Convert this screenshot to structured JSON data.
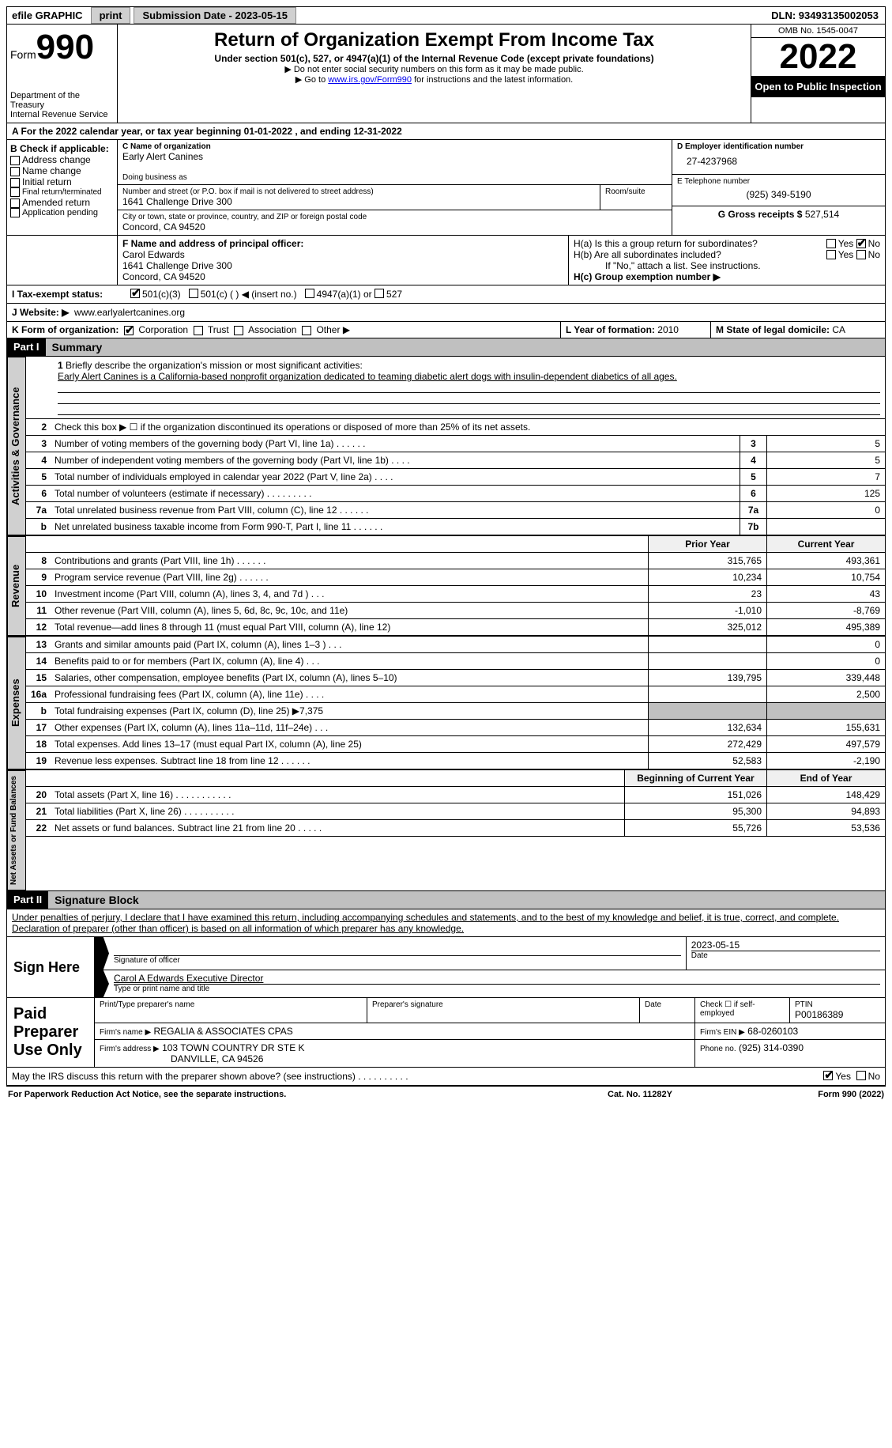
{
  "topbar": {
    "efile_label": "efile GRAPHIC",
    "print_btn": "print",
    "sub_date_label": "Submission Date - 2023-05-15",
    "dln_label": "DLN: 93493135002053"
  },
  "header": {
    "form_word": "Form",
    "form_num": "990",
    "dept": "Department of the Treasury",
    "irs": "Internal Revenue Service",
    "title": "Return of Organization Exempt From Income Tax",
    "sub1": "Under section 501(c), 527, or 4947(a)(1) of the Internal Revenue Code (except private foundations)",
    "sub2": "▶ Do not enter social security numbers on this form as it may be made public.",
    "sub3_pre": "▶ Go to ",
    "sub3_link": "www.irs.gov/Form990",
    "sub3_post": " for instructions and the latest information.",
    "omb": "OMB No. 1545-0047",
    "year": "2022",
    "inspect": "Open to Public Inspection"
  },
  "section_a": {
    "text": "A  For the 2022 calendar year, or tax year beginning 01-01-2022    , and ending 12-31-2022"
  },
  "col_b": {
    "title": "B Check if applicable:",
    "opts": [
      "Address change",
      "Name change",
      "Initial return",
      "Final return/terminated",
      "Amended return",
      "Application pending"
    ]
  },
  "col_c": {
    "name_label": "C Name of organization",
    "name": "Early Alert Canines",
    "dba_label": "Doing business as",
    "addr_label": "Number and street (or P.O. box if mail is not delivered to street address)",
    "addr": "1641 Challenge Drive 300",
    "room_label": "Room/suite",
    "city_label": "City or town, state or province, country, and ZIP or foreign postal code",
    "city": "Concord, CA  94520"
  },
  "col_d": {
    "ein_label": "D Employer identification number",
    "ein": "27-4237968",
    "tel_label": "E Telephone number",
    "tel": "(925) 349-5190",
    "gross_label": "G Gross receipts $",
    "gross": "527,514"
  },
  "row_f": {
    "f_label": "F Name and address of principal officer:",
    "f_name": "Carol Edwards",
    "f_addr1": "1641 Challenge Drive 300",
    "f_addr2": "Concord, CA  94520",
    "ha_label": "H(a)  Is this a group return for subordinates?",
    "hb_label": "H(b)  Are all subordinates included?",
    "hb_note": "If \"No,\" attach a list. See instructions.",
    "hc_label": "H(c)  Group exemption number ▶",
    "yes": "Yes",
    "no": "No"
  },
  "row_i": {
    "label": "I    Tax-exempt status:",
    "o1": "501(c)(3)",
    "o2": "501(c) (  ) ◀ (insert no.)",
    "o3": "4947(a)(1) or",
    "o4": "527"
  },
  "row_j": {
    "label": "J   Website: ▶",
    "val": "www.earlyalertcanines.org"
  },
  "row_k": {
    "label": "K Form of organization:",
    "o1": "Corporation",
    "o2": "Trust",
    "o3": "Association",
    "o4": "Other ▶",
    "l_label": "L Year of formation:",
    "l_val": "2010",
    "m_label": "M State of legal domicile:",
    "m_val": "CA"
  },
  "part1": {
    "part": "Part I",
    "title": "Summary",
    "tab_ag": "Activities & Governance",
    "tab_rev": "Revenue",
    "tab_exp": "Expenses",
    "tab_na": "Net Assets or Fund Balances",
    "l1_label": "Briefly describe the organization's mission or most significant activities:",
    "l1_text": "Early Alert Canines is a California-based nonprofit organization dedicated to teaming diabetic alert dogs with insulin-dependent diabetics of all ages.",
    "l2": "Check this box ▶ ☐  if the organization discontinued its operations or disposed of more than 25% of its net assets.",
    "prior_hdr": "Prior Year",
    "curr_hdr": "Current Year",
    "boy_hdr": "Beginning of Current Year",
    "eoy_hdr": "End of Year",
    "lines_ag": [
      {
        "n": "3",
        "t": "Number of voting members of the governing body (Part VI, line 1a)   .    .    .    .    .    .",
        "box": "3",
        "v": "5"
      },
      {
        "n": "4",
        "t": "Number of independent voting members of the governing body (Part VI, line 1b)   .    .    .    .",
        "box": "4",
        "v": "5"
      },
      {
        "n": "5",
        "t": "Total number of individuals employed in calendar year 2022 (Part V, line 2a)   .    .    .    .",
        "box": "5",
        "v": "7"
      },
      {
        "n": "6",
        "t": "Total number of volunteers (estimate if necessary)    .    .    .    .    .    .    .    .    .",
        "box": "6",
        "v": "125"
      },
      {
        "n": "7a",
        "t": "Total unrelated business revenue from Part VIII, column (C), line 12   .    .    .    .    .    .",
        "box": "7a",
        "v": "0"
      },
      {
        "n": "b",
        "t": "Net unrelated business taxable income from Form 990-T, Part I, line 11   .    .    .    .    .    .",
        "box": "7b",
        "v": ""
      }
    ],
    "lines_rev": [
      {
        "n": "8",
        "t": "Contributions and grants (Part VIII, line 1h)   .    .    .    .    .    .",
        "p": "315,765",
        "c": "493,361"
      },
      {
        "n": "9",
        "t": "Program service revenue (Part VIII, line 2g)   .    .    .    .    .    .",
        "p": "10,234",
        "c": "10,754"
      },
      {
        "n": "10",
        "t": "Investment income (Part VIII, column (A), lines 3, 4, and 7d )   .    .    .",
        "p": "23",
        "c": "43"
      },
      {
        "n": "11",
        "t": "Other revenue (Part VIII, column (A), lines 5, 6d, 8c, 9c, 10c, and 11e)",
        "p": "-1,010",
        "c": "-8,769"
      },
      {
        "n": "12",
        "t": "Total revenue—add lines 8 through 11 (must equal Part VIII, column (A), line 12)",
        "p": "325,012",
        "c": "495,389"
      }
    ],
    "lines_exp": [
      {
        "n": "13",
        "t": "Grants and similar amounts paid (Part IX, column (A), lines 1–3 )   .    .    .",
        "p": "",
        "c": "0"
      },
      {
        "n": "14",
        "t": "Benefits paid to or for members (Part IX, column (A), line 4)   .    .    .",
        "p": "",
        "c": "0"
      },
      {
        "n": "15",
        "t": "Salaries, other compensation, employee benefits (Part IX, column (A), lines 5–10)",
        "p": "139,795",
        "c": "339,448"
      },
      {
        "n": "16a",
        "t": "Professional fundraising fees (Part IX, column (A), line 11e)   .    .    .    .",
        "p": "",
        "c": "2,500"
      },
      {
        "n": "b",
        "t": "Total fundraising expenses (Part IX, column (D), line 25) ▶7,375",
        "p": "SHADE",
        "c": "SHADE"
      },
      {
        "n": "17",
        "t": "Other expenses (Part IX, column (A), lines 11a–11d, 11f–24e)   .    .    .",
        "p": "132,634",
        "c": "155,631"
      },
      {
        "n": "18",
        "t": "Total expenses. Add lines 13–17 (must equal Part IX, column (A), line 25)",
        "p": "272,429",
        "c": "497,579"
      },
      {
        "n": "19",
        "t": "Revenue less expenses. Subtract line 18 from line 12   .    .    .    .    .    .",
        "p": "52,583",
        "c": "-2,190"
      }
    ],
    "lines_na": [
      {
        "n": "20",
        "t": "Total assets (Part X, line 16)   .    .    .    .    .    .    .    .    .    .    .",
        "p": "151,026",
        "c": "148,429"
      },
      {
        "n": "21",
        "t": "Total liabilities (Part X, line 26)   .    .    .    .    .    .    .    .    .    .",
        "p": "95,300",
        "c": "94,893"
      },
      {
        "n": "22",
        "t": "Net assets or fund balances. Subtract line 21 from line 20   .    .    .    .    .",
        "p": "55,726",
        "c": "53,536"
      }
    ]
  },
  "part2": {
    "part": "Part II",
    "title": "Signature Block",
    "decl": "Under penalties of perjury, I declare that I have examined this return, including accompanying schedules and statements, and to the best of my knowledge and belief, it is true, correct, and complete. Declaration of preparer (other than officer) is based on all information of which preparer has any knowledge.",
    "sign_here": "Sign Here",
    "sig_officer": "Signature of officer",
    "sig_date": "2023-05-15",
    "date_label": "Date",
    "officer_name": "Carol A Edwards  Executive Director",
    "type_name": "Type or print name and title",
    "paid": "Paid Preparer Use Only",
    "prep_name_label": "Print/Type preparer's name",
    "prep_sig_label": "Preparer's signature",
    "check_if": "Check ☐ if self-employed",
    "ptin_label": "PTIN",
    "ptin": "P00186389",
    "firm_name_label": "Firm's name    ▶",
    "firm_name": "REGALIA & ASSOCIATES CPAS",
    "firm_ein_label": "Firm's EIN ▶",
    "firm_ein": "68-0260103",
    "firm_addr_label": "Firm's address ▶",
    "firm_addr1": "103 TOWN COUNTRY DR STE K",
    "firm_addr2": "DANVILLE, CA  94526",
    "phone_label": "Phone no.",
    "phone": "(925) 314-0390",
    "discuss": "May the IRS discuss this return with the preparer shown above? (see instructions)   .    .    .    .    .    .    .    .    .    .",
    "yes": "Yes",
    "no": "No"
  },
  "footer": {
    "left": "For Paperwork Reduction Act Notice, see the separate instructions.",
    "mid": "Cat. No. 11282Y",
    "right": "Form 990 (2022)"
  }
}
